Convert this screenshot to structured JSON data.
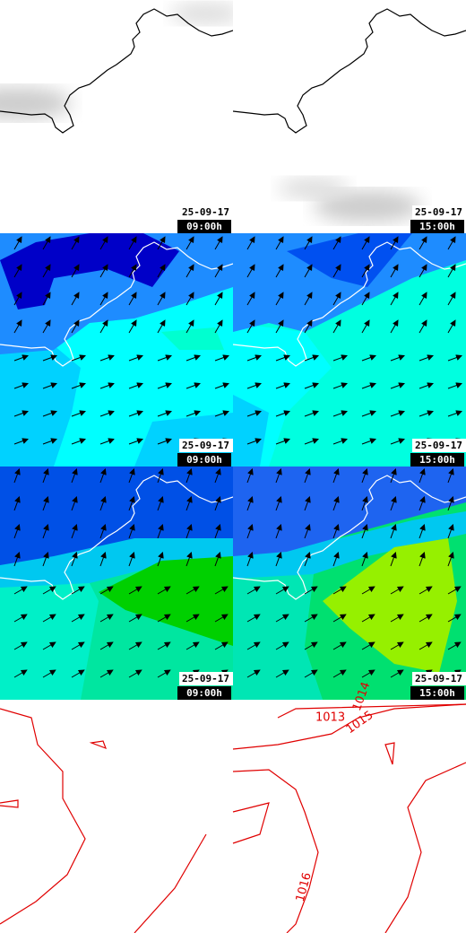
{
  "panels": [
    {
      "date": "25-09-17",
      "time": "09:00h"
    },
    {
      "date": "25-09-17",
      "time": "15:00h"
    },
    {
      "date": "25-09-17",
      "time": "09:00h"
    },
    {
      "date": "25-09-17",
      "time": "15:00h"
    },
    {
      "date": "25-09-17",
      "time": "09:00h"
    },
    {
      "date": "25-09-17",
      "time": "15:00h"
    }
  ],
  "isobar_labels": [
    "1013",
    "1014",
    "1015",
    "1016"
  ]
}
